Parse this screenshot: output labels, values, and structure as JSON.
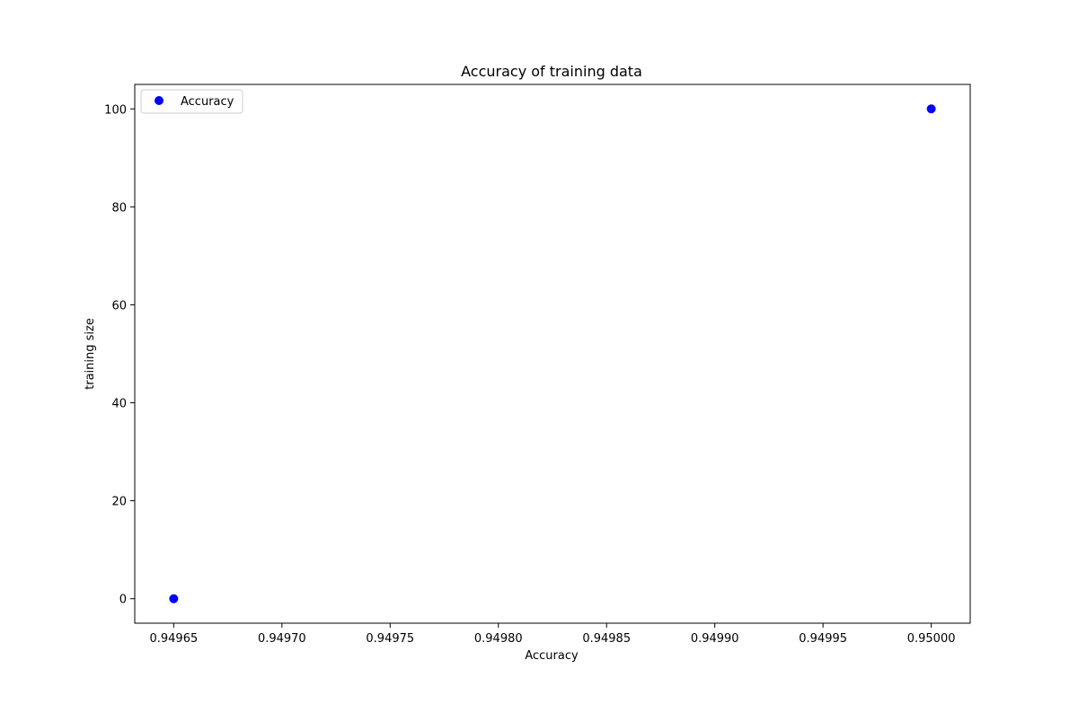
{
  "chart_data": {
    "type": "scatter",
    "title": "Accuracy of training data",
    "xlabel": "Accuracy",
    "ylabel": "training size",
    "xlim": [
      0.949632,
      0.950018
    ],
    "ylim": [
      -5,
      105
    ],
    "xticks": [
      0.94965,
      0.9497,
      0.94975,
      0.9498,
      0.94985,
      0.9499,
      0.94995,
      0.95
    ],
    "xtick_labels": [
      "0.94965",
      "0.94970",
      "0.94975",
      "0.94980",
      "0.94985",
      "0.94990",
      "0.94995",
      "0.95000"
    ],
    "yticks": [
      0,
      20,
      40,
      60,
      80,
      100
    ],
    "ytick_labels": [
      "0",
      "20",
      "40",
      "60",
      "80",
      "100"
    ],
    "grid": false,
    "legend_position": "upper-left",
    "series": [
      {
        "name": "Accuracy",
        "color": "#0000ff",
        "marker": "circle",
        "points": [
          {
            "x": 0.94965,
            "y": 0
          },
          {
            "x": 0.95,
            "y": 100
          }
        ]
      }
    ]
  }
}
